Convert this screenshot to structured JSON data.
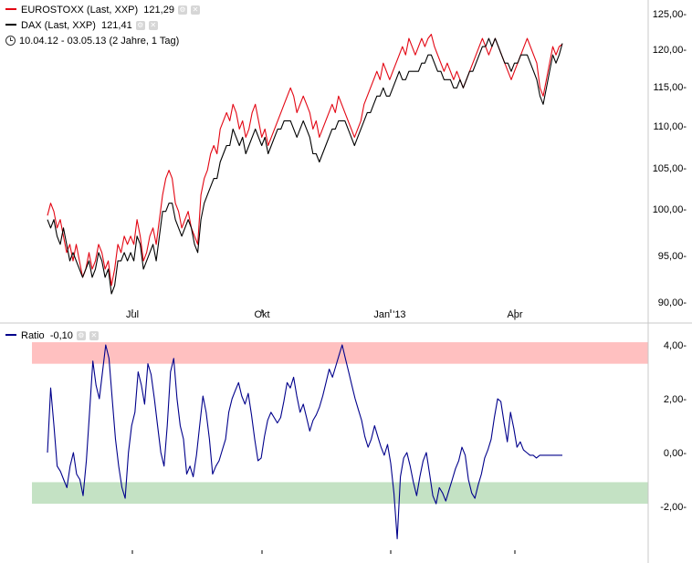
{
  "legend_upper": {
    "euro": {
      "name": "EUROSTOXX (Last, XXP)",
      "value": "121,29",
      "color": "#e30613"
    },
    "dax": {
      "name": "DAX (Last, XXP)",
      "value": "121,41",
      "color": "#000000"
    },
    "period": "10.04.12 - 03.05.13 (2 Jahre, 1 Tag)"
  },
  "legend_lower": {
    "ratio": {
      "name": "Ratio",
      "value": "-0,10",
      "color": "#00008b"
    }
  },
  "icons": [
    "settings-icon",
    "close-icon",
    "clock-icon"
  ],
  "chart_data": [
    {
      "type": "line",
      "x_tick_labels": [
        "Jul",
        "Okt",
        "Jan '13",
        "Apr"
      ],
      "y_tick_labels": [
        "125,00-",
        "120,00-",
        "115,00-",
        "110,00-",
        "105,00-",
        "100,00-",
        "95,00-",
        "90,00-"
      ],
      "ylim": [
        90,
        126
      ],
      "grid": false,
      "legend_position": "top-left",
      "series": [
        {
          "name": "EUROSTOXX (Last, XXP)",
          "color": "#e30613",
          "values": [
            100.5,
            102,
            101,
            99,
            100,
            98,
            96,
            97,
            95,
            97,
            95,
            93,
            94,
            96,
            94,
            95,
            97,
            96,
            94,
            95,
            92,
            94,
            97,
            96,
            98,
            97,
            98,
            97,
            100,
            98,
            95,
            96,
            98,
            99,
            97,
            100,
            103,
            105,
            106,
            105,
            102,
            101,
            99,
            100,
            101,
            99,
            98,
            97,
            103,
            105,
            106,
            108,
            109,
            108,
            111,
            112,
            113,
            112,
            114,
            113,
            111,
            112,
            110,
            111,
            113,
            114,
            112,
            110,
            111,
            109,
            110,
            111,
            112,
            113,
            114,
            115,
            116,
            115,
            113,
            114,
            115,
            114,
            113,
            111,
            112,
            110,
            111,
            112,
            113,
            114,
            113,
            115,
            114,
            113,
            112,
            111,
            110,
            111,
            112,
            114,
            115,
            116,
            117,
            118,
            117,
            119,
            118,
            117,
            118,
            119,
            120,
            121,
            120,
            122,
            121,
            120,
            121,
            122,
            121,
            122,
            122.5,
            121,
            120,
            119,
            118,
            119,
            118,
            117,
            118,
            117,
            116,
            117,
            118,
            119,
            120,
            121,
            122,
            121,
            120,
            121,
            122,
            121,
            120,
            119,
            118,
            117,
            118,
            119,
            120,
            121,
            122,
            121,
            120,
            119,
            116,
            115,
            117,
            119,
            121,
            120,
            121,
            121.3
          ]
        },
        {
          "name": "DAX (Last, XXP)",
          "color": "#000000",
          "values": [
            100,
            99,
            100,
            98,
            97,
            99,
            97,
            95,
            96,
            95,
            94,
            93,
            94,
            95,
            93,
            94,
            96,
            95,
            93,
            94,
            91,
            92,
            95,
            95,
            96,
            95,
            96,
            95,
            98,
            97,
            94,
            95,
            96,
            97,
            95,
            98,
            101,
            101,
            102,
            102,
            100,
            99,
            98,
            99,
            100,
            99,
            97,
            96,
            100,
            102,
            103,
            104,
            105,
            105,
            107,
            108,
            109,
            109,
            111,
            110,
            109,
            110,
            108,
            109,
            110,
            111,
            110,
            109,
            110,
            108,
            109,
            110,
            111,
            111,
            112,
            112,
            112,
            111,
            110,
            111,
            112,
            111,
            110,
            108,
            108,
            107,
            108,
            109,
            110,
            111,
            111,
            112,
            112,
            112,
            111,
            110,
            109,
            110,
            111,
            112,
            113,
            113,
            114,
            115,
            115,
            116,
            115,
            115,
            116,
            117,
            118,
            117,
            117,
            118,
            118,
            118,
            118,
            119,
            119,
            120,
            120,
            119,
            118,
            118,
            117,
            117,
            117,
            116,
            116,
            117,
            116,
            117,
            118,
            118,
            119,
            120,
            121,
            121,
            122,
            121,
            122,
            121,
            120,
            119,
            119,
            118,
            119,
            119,
            120,
            120,
            120,
            119,
            118,
            117,
            115,
            114,
            116,
            118,
            120,
            119,
            120,
            121.4
          ]
        }
      ]
    },
    {
      "type": "line",
      "x_tick_labels": [
        "",
        "",
        "",
        ""
      ],
      "y_tick_labels": [
        "4,00-",
        "2,00-",
        "0,00-",
        "-2,00-"
      ],
      "ylim": [
        -3.3,
        4.3
      ],
      "grid": false,
      "bands": [
        {
          "from": 3.3,
          "to": 4.1,
          "color": "#ffc0c0"
        },
        {
          "from": -1.9,
          "to": -1.1,
          "color": "#c4e2c4"
        }
      ],
      "series": [
        {
          "name": "Ratio",
          "color": "#00008b",
          "values": [
            0,
            2.4,
            1,
            -0.5,
            -0.7,
            -1,
            -1.3,
            -0.5,
            0,
            -0.8,
            -1,
            -1.6,
            -0.3,
            1.5,
            3.4,
            2.5,
            2,
            3,
            4,
            3.5,
            2,
            0.5,
            -0.5,
            -1.3,
            -1.7,
            0,
            1,
            1.5,
            3,
            2.5,
            1.8,
            3.3,
            2.9,
            2,
            1,
            0,
            -0.5,
            1,
            3,
            3.5,
            2,
            1,
            0.5,
            -0.8,
            -0.5,
            -0.9,
            -0.1,
            1,
            2.1,
            1.5,
            0.5,
            -0.8,
            -0.5,
            -0.3,
            0.1,
            0.5,
            1.5,
            2,
            2.3,
            2.6,
            2.1,
            1.8,
            2.2,
            1.4,
            0.5,
            -0.3,
            -0.2,
            0.6,
            1.2,
            1.5,
            1.3,
            1.1,
            1.3,
            1.9,
            2.6,
            2.4,
            2.8,
            2.1,
            1.5,
            1.8,
            1.3,
            0.8,
            1.2,
            1.4,
            1.7,
            2.1,
            2.6,
            3.1,
            2.8,
            3.2,
            3.6,
            4,
            3.5,
            3,
            2.5,
            2,
            1.6,
            1.2,
            0.6,
            0.2,
            0.5,
            1,
            0.6,
            0.2,
            -0.1,
            0.3,
            -0.4,
            -1.5,
            -3.2,
            -0.9,
            -0.2,
            0,
            -0.5,
            -1.1,
            -1.6,
            -0.9,
            -0.3,
            0,
            -0.8,
            -1.6,
            -1.9,
            -1.3,
            -1.5,
            -1.8,
            -1.4,
            -1,
            -0.6,
            -0.3,
            0.2,
            -0.1,
            -1,
            -1.5,
            -1.7,
            -1.2,
            -0.8,
            -0.2,
            0.1,
            0.5,
            1.3,
            2,
            1.9,
            1.1,
            0.4,
            1.5,
            0.9,
            0.2,
            0.4,
            0.1,
            0,
            -0.1,
            -0.1,
            -0.2,
            -0.1,
            -0.1,
            -0.1,
            -0.1,
            -0.1,
            -0.1,
            -0.1,
            -0.1
          ]
        }
      ]
    }
  ]
}
